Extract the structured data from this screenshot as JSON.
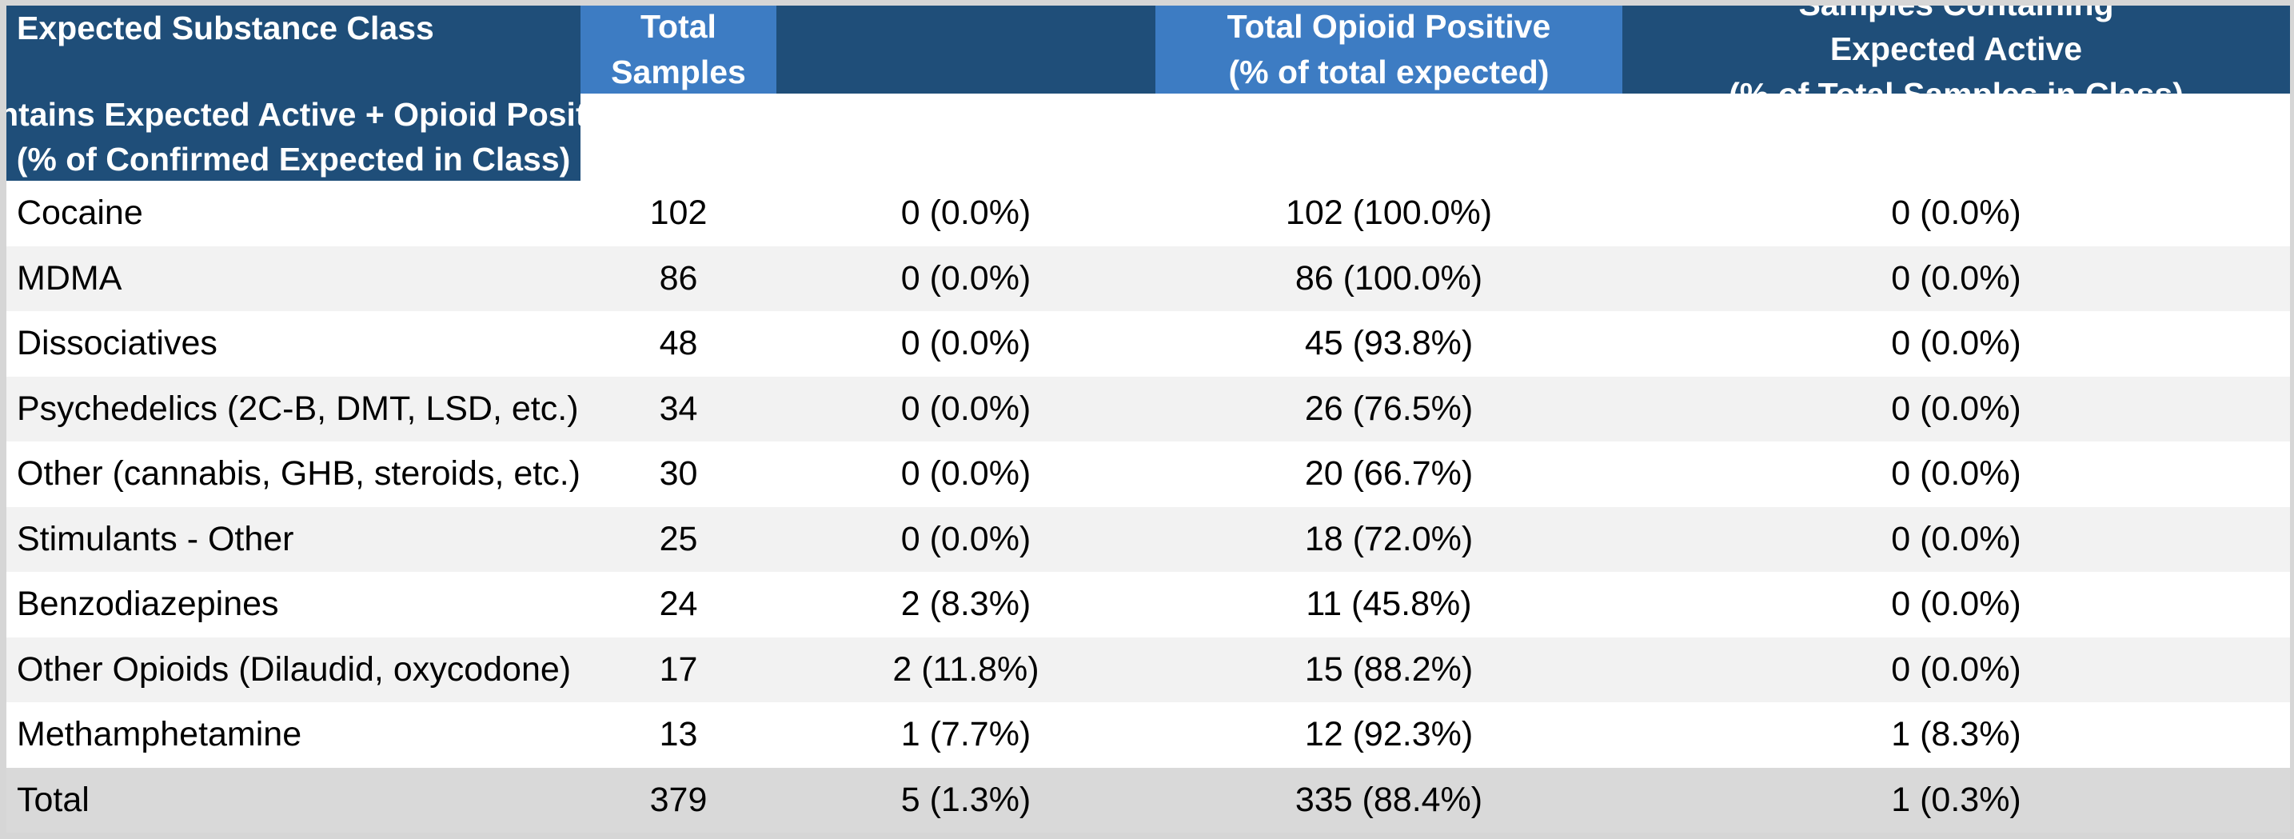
{
  "colors": {
    "header_dark_blue": "#1f4e79",
    "header_light_blue": "#3d7cc3",
    "row_white": "#ffffff",
    "row_alt_gray": "#f2f2f2",
    "total_row_gray": "#d9d9d9",
    "outer_border_gray": "#d6d6d6",
    "header_text": "#ffffff",
    "body_text": "#000000"
  },
  "header": {
    "substance_class": "Expected Substance Class",
    "total_samples": [
      "Total",
      "Samples"
    ],
    "opioid_positive": [
      "Total Opioid Positive",
      "(% of total expected)"
    ],
    "expected_active": [
      "Samples Containing",
      "Expected Active",
      "(% of Total Samples in Class)"
    ],
    "active_plus_opioid": [
      "Contains Expected Active + Opioid Positive",
      "(% of Confirmed Expected in Class)"
    ]
  },
  "rows": [
    {
      "substance_class": "Cocaine",
      "total_samples": "102",
      "opioid_positive": "0 (0.0%)",
      "expected_active": "102 (100.0%)",
      "active_plus_opioid": "0 (0.0%)"
    },
    {
      "substance_class": "MDMA",
      "total_samples": "86",
      "opioid_positive": "0 (0.0%)",
      "expected_active": "86 (100.0%)",
      "active_plus_opioid": "0 (0.0%)"
    },
    {
      "substance_class": "Dissociatives",
      "total_samples": "48",
      "opioid_positive": "0 (0.0%)",
      "expected_active": "45 (93.8%)",
      "active_plus_opioid": "0 (0.0%)"
    },
    {
      "substance_class": "Psychedelics (2C-B, DMT, LSD, etc.)",
      "total_samples": "34",
      "opioid_positive": "0 (0.0%)",
      "expected_active": "26 (76.5%)",
      "active_plus_opioid": "0 (0.0%)"
    },
    {
      "substance_class": "Other (cannabis, GHB, steroids, etc.)",
      "total_samples": "30",
      "opioid_positive": "0 (0.0%)",
      "expected_active": "20 (66.7%)",
      "active_plus_opioid": "0 (0.0%)"
    },
    {
      "substance_class": "Stimulants - Other",
      "total_samples": "25",
      "opioid_positive": "0 (0.0%)",
      "expected_active": "18 (72.0%)",
      "active_plus_opioid": "0 (0.0%)"
    },
    {
      "substance_class": "Benzodiazepines",
      "total_samples": "24",
      "opioid_positive": "2 (8.3%)",
      "expected_active": "11 (45.8%)",
      "active_plus_opioid": "0 (0.0%)"
    },
    {
      "substance_class": "Other Opioids (Dilaudid, oxycodone)",
      "total_samples": "17",
      "opioid_positive": "2 (11.8%)",
      "expected_active": "15 (88.2%)",
      "active_plus_opioid": "0 (0.0%)"
    },
    {
      "substance_class": "Methamphetamine",
      "total_samples": "13",
      "opioid_positive": "1 (7.7%)",
      "expected_active": "12 (92.3%)",
      "active_plus_opioid": "1 (8.3%)"
    }
  ],
  "total_row": {
    "substance_class": "Total",
    "total_samples": "379",
    "opioid_positive": "5 (1.3%)",
    "expected_active": "335 (88.4%)",
    "active_plus_opioid": "1 (0.3%)"
  }
}
